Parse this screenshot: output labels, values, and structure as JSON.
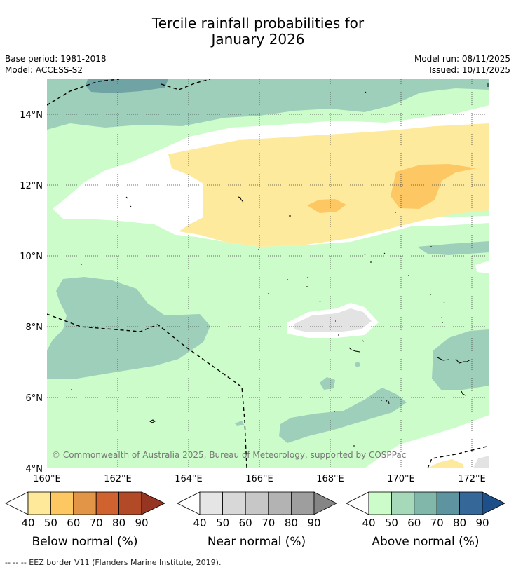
{
  "title_line1": "Tercile rainfall probabilities for",
  "title_line2": "January 2026",
  "base_period": "Base period: 1981-2018",
  "model": "Model: ACCESS-S2",
  "model_run": "Model run: 08/11/2025",
  "issued": "Issued: 10/11/2025",
  "copyright": "© Commonwealth of Australia 2025, Bureau of Meteorology, supported by COSPPac",
  "lat_labels": [
    "14°N",
    "12°N",
    "10°N",
    "8°N",
    "6°N",
    "4°N"
  ],
  "lon_labels": [
    "160°E",
    "162°E",
    "164°E",
    "166°E",
    "168°E",
    "170°E",
    "172°E"
  ],
  "legends": [
    {
      "label": "Below normal (%)",
      "ticks": [
        "40",
        "50",
        "60",
        "70",
        "80",
        "90"
      ],
      "colors": [
        "#fee99b",
        "#fdc862",
        "#e29547",
        "#d0622f",
        "#b24a27",
        "#963522"
      ]
    },
    {
      "label": "Near normal (%)",
      "ticks": [
        "40",
        "50",
        "60",
        "70",
        "80",
        "90"
      ],
      "colors": [
        "#e5e5e5",
        "#d8d8d8",
        "#c7c7c7",
        "#b3b3b3",
        "#9e9e9e",
        "#858585"
      ]
    },
    {
      "label": "Above normal (%)",
      "ticks": [
        "40",
        "50",
        "60",
        "70",
        "80",
        "90"
      ],
      "colors": [
        "#ccfcc9",
        "#a6d8ba",
        "#80b7aa",
        "#5e949f",
        "#356898",
        "#1f4f88"
      ]
    }
  ],
  "footnote": "--  --  -- EEZ border V11 (Flanders Marine Institute, 2019).",
  "colors": {
    "above_40": "#ccfcc9",
    "above_50": "#9ecfbb",
    "above_60": "#6fa3a4",
    "below_40": "#feea9c",
    "below_50": "#fdc763",
    "near_40": "#e3e3e3"
  }
}
